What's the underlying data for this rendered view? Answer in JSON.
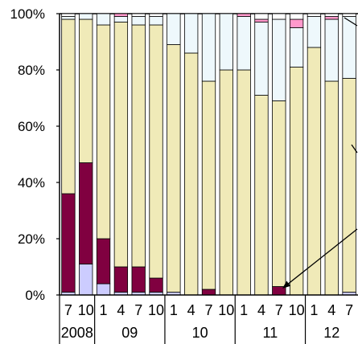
{
  "chart_data": {
    "type": "bar",
    "stacked": "percent",
    "ylim": [
      0,
      100
    ],
    "yticks": [
      "0%",
      "20%",
      "40%",
      "60%",
      "80%",
      "100%"
    ],
    "month_labels": [
      "7",
      "10",
      "1",
      "4",
      "7",
      "10",
      "1",
      "4",
      "7",
      "10",
      "1",
      "4",
      "7",
      "10",
      "1",
      "4",
      "7"
    ],
    "year_groups": [
      {
        "label": "2008",
        "start": 0,
        "end": 1
      },
      {
        "label": "09",
        "start": 2,
        "end": 5
      },
      {
        "label": "10",
        "start": 6,
        "end": 9
      },
      {
        "label": "11",
        "start": 10,
        "end": 13
      },
      {
        "label": "12",
        "start": 14,
        "end": 16
      }
    ],
    "colors": [
      "#ccccff",
      "#800040",
      "#f0eab8",
      "#eef8fc",
      "#ff99cc",
      "#ffffff"
    ],
    "series": [
      {
        "values": [
          1,
          11,
          4,
          1,
          1,
          1,
          1,
          0,
          0,
          0,
          0,
          0,
          0,
          0,
          0,
          0,
          1
        ]
      },
      {
        "values": [
          35,
          36,
          16,
          9,
          9,
          5,
          0,
          0,
          2,
          0,
          0,
          0,
          3,
          0,
          0,
          0,
          0
        ]
      },
      {
        "values": [
          62,
          51,
          76,
          87,
          86,
          90,
          88,
          86,
          74,
          80,
          80,
          71,
          66,
          81,
          88,
          76,
          76
        ]
      },
      {
        "values": [
          1,
          2,
          4,
          2,
          3,
          3,
          11,
          14,
          24,
          20,
          19,
          26,
          29,
          14,
          11,
          22,
          22
        ]
      },
      {
        "values": [
          0,
          0,
          0,
          1,
          0,
          0,
          0,
          0,
          0,
          0,
          1,
          1,
          0,
          3,
          0,
          1,
          0
        ]
      },
      {
        "values": [
          1,
          0,
          0,
          0,
          1,
          1,
          0,
          0,
          0,
          0,
          0,
          2,
          2,
          2,
          1,
          1,
          1
        ]
      }
    ],
    "annotations": [
      {
        "type": "arrow",
        "target_bar": 12
      }
    ]
  }
}
